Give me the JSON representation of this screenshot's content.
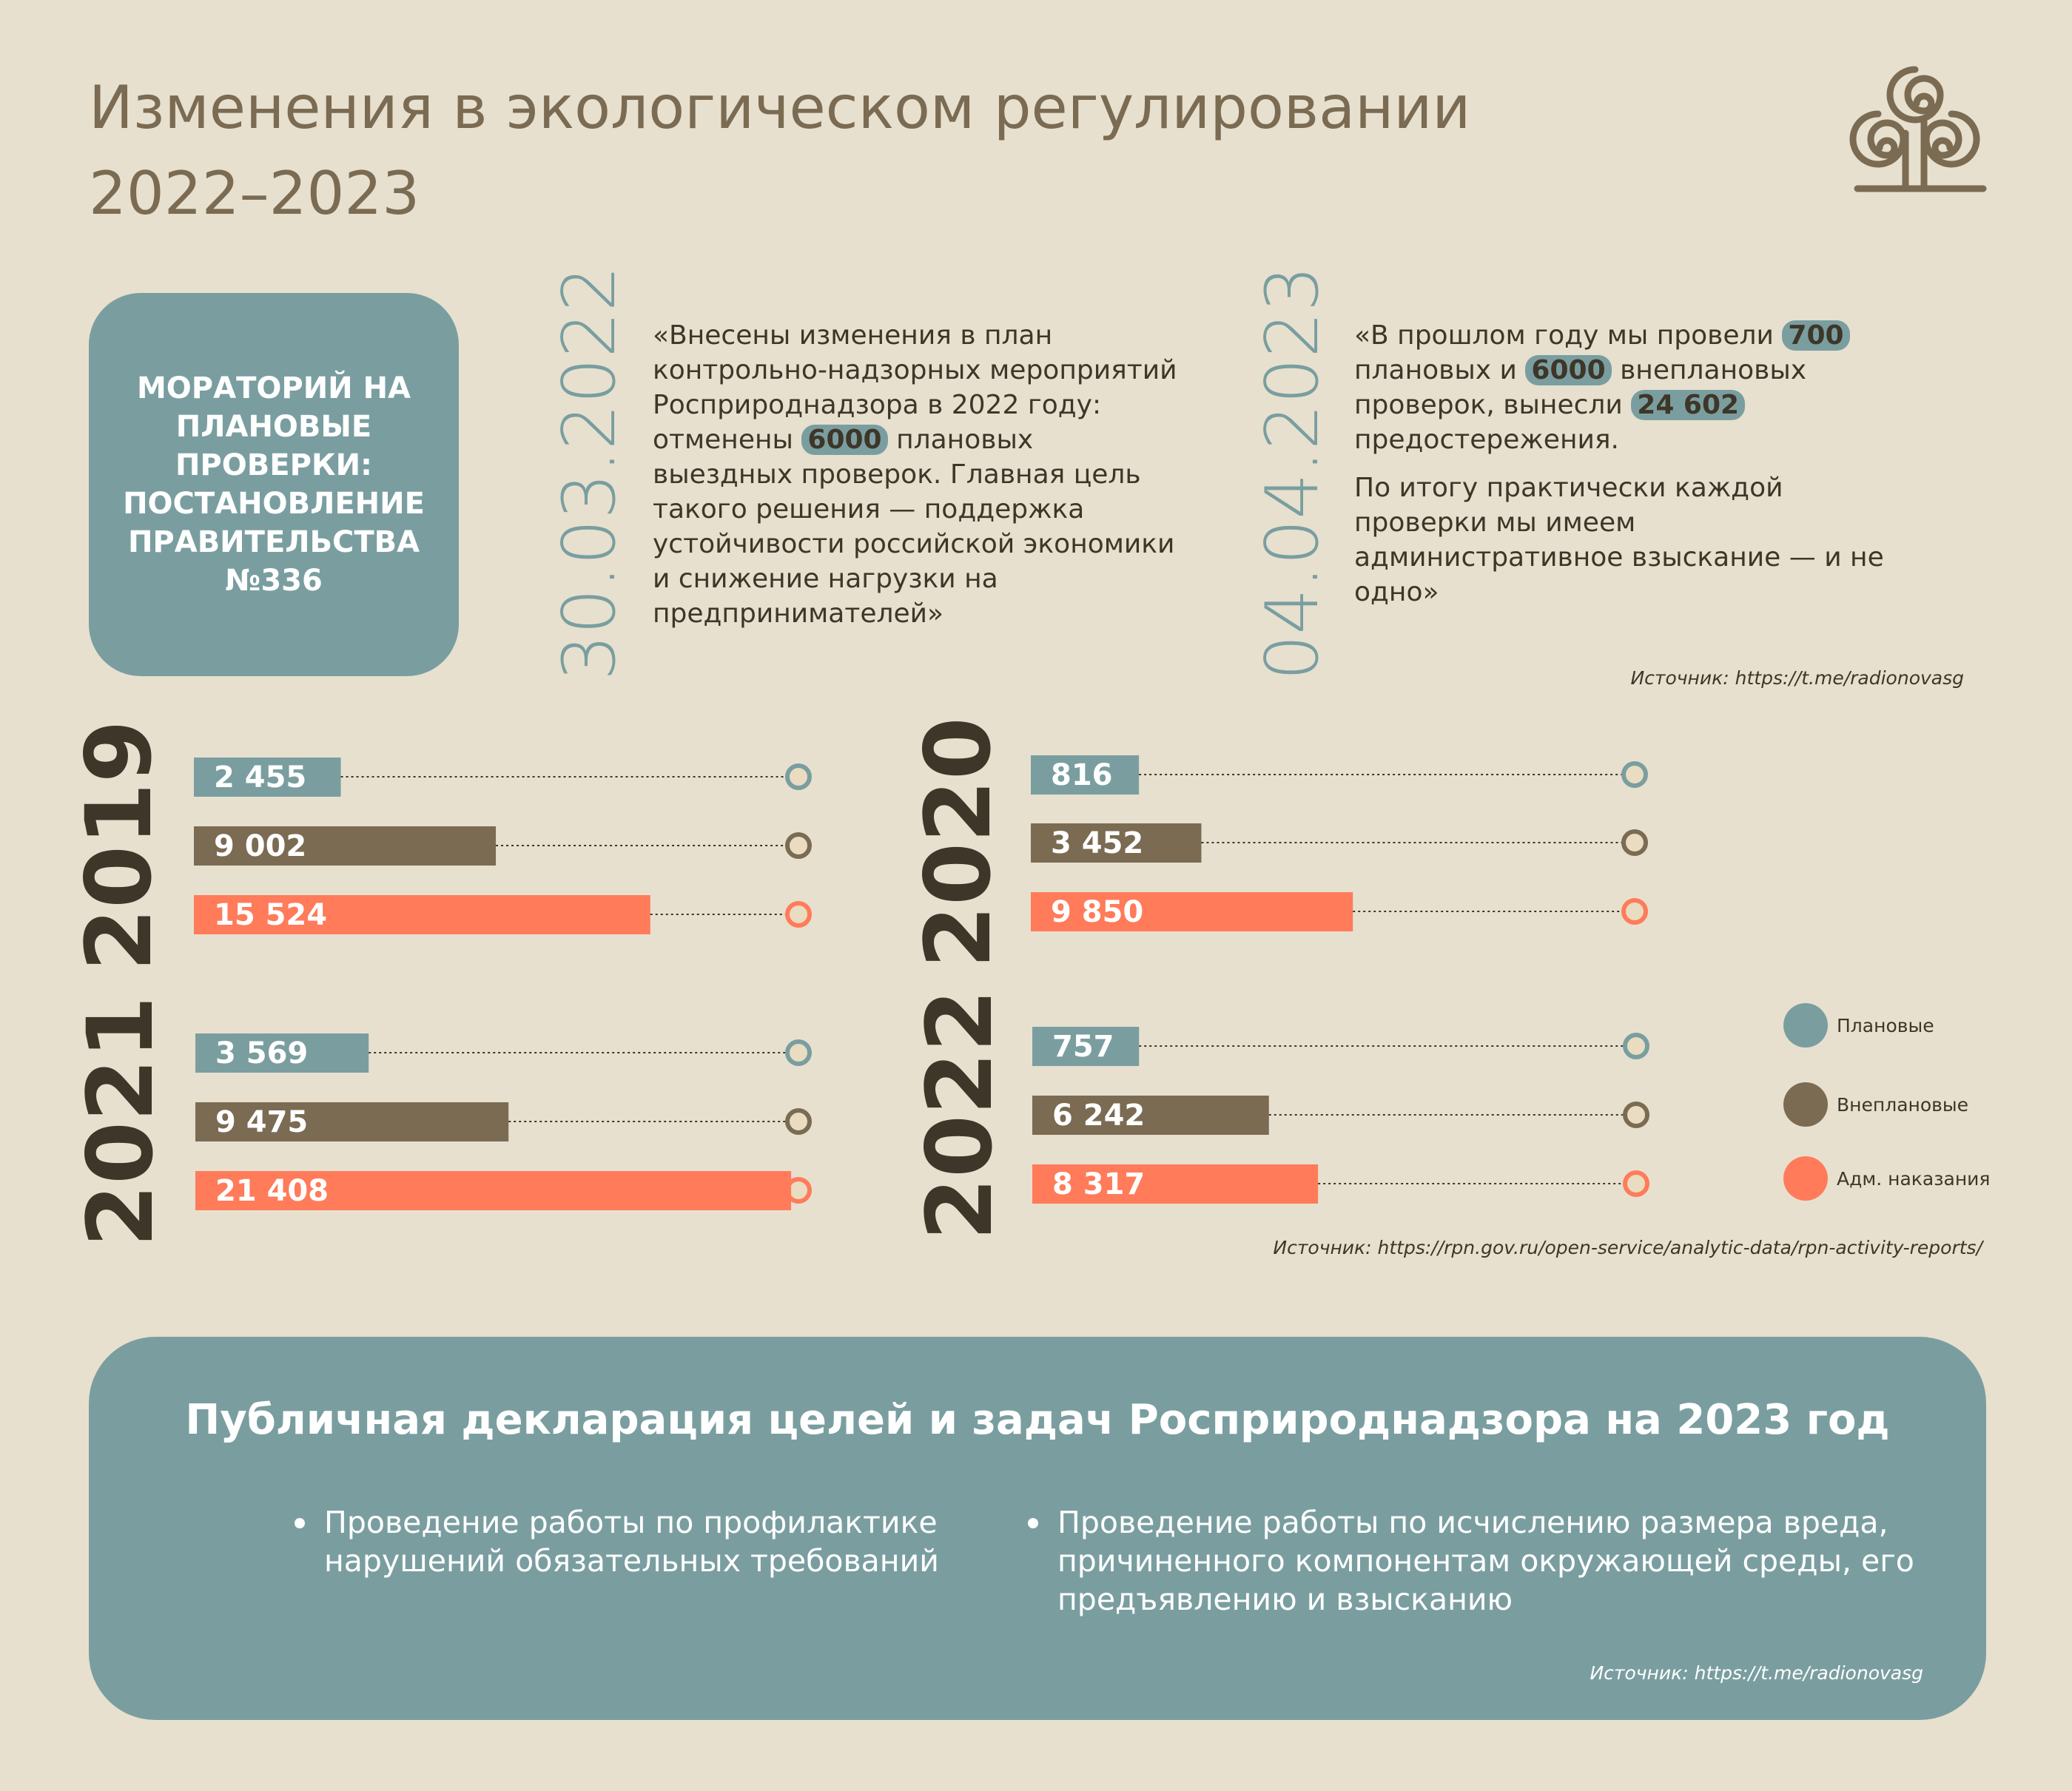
{
  "header": {
    "title": "Изменения в экологическом регулировании 2022–2023"
  },
  "moratorium": "МОРАТОРИЙ НА ПЛАНОВЫЕ ПРОВЕРКИ: ПОСТАНОВЛЕНИЕ ПРАВИТЕЛЬСТВА №336",
  "quotes": [
    {
      "date": "30.03.2022",
      "paragraphs": [
        {
          "parts": [
            {
              "text": "«Внесены изменения в план контрольно-надзорных мероприятий Росприроднадзора в 2022 году: отменены"
            },
            {
              "text": "6000",
              "highlight": true
            },
            {
              "text": "плановых выездных проверок. Главная цель такого решения — поддержка устойчивости российской экономики и снижение нагрузки на предпринимателей»"
            }
          ]
        }
      ]
    },
    {
      "date": "04.04.2023",
      "paragraphs": [
        {
          "parts": [
            {
              "text": "«В прошлом году мы провели"
            },
            {
              "text": "700",
              "highlight": true
            },
            {
              "text": "плановых и"
            },
            {
              "text": "6000",
              "highlight": true
            },
            {
              "text": "внеплановых проверок, вынесли"
            },
            {
              "text": "24 602",
              "highlight": true
            },
            {
              "text": "предостережения."
            }
          ]
        },
        {
          "parts": [
            {
              "text": "По итогу практически каждой проверки мы имеем административное взыскание — и не одно»"
            }
          ]
        }
      ]
    }
  ],
  "quote_source": "Источник: https://t.me/radionovasg",
  "chart_data": [
    {
      "type": "bar",
      "title": "2019",
      "values": [
        2455,
        9002,
        15524
      ],
      "value_labels": [
        "2 455",
        "9 002",
        "15 524"
      ],
      "colors": [
        "#7a9ea0",
        "#7a6b52",
        "#ff7b5a"
      ]
    },
    {
      "type": "bar",
      "title": "2020",
      "values": [
        816,
        3452,
        9850
      ],
      "value_labels": [
        "816",
        "3 452",
        "9 850"
      ],
      "colors": [
        "#7a9ea0",
        "#7a6b52",
        "#ff7b5a"
      ]
    },
    {
      "type": "bar",
      "title": "2021",
      "values": [
        3569,
        9475,
        21408
      ],
      "value_labels": [
        "3 569",
        "9 475",
        "21 408"
      ],
      "colors": [
        "#7a9ea0",
        "#7a6b52",
        "#ff7b5a"
      ]
    },
    {
      "type": "bar",
      "title": "2022",
      "values": [
        757,
        6242,
        8317
      ],
      "value_labels": [
        "757",
        "6 242",
        "8 317"
      ],
      "colors": [
        "#7a9ea0",
        "#7a6b52",
        "#ff7b5a"
      ]
    }
  ],
  "legend": [
    {
      "name": "Плановые",
      "color": "#7a9ea0"
    },
    {
      "name": "Внеплановые",
      "color": "#7a6b52"
    },
    {
      "name": "Адм. наказания",
      "color": "#ff7b5a"
    }
  ],
  "chart_source": "Источник: https://rpn.gov.ru/open-service/analytic-data/rpn-activity-reports/",
  "declaration": {
    "title": "Публичная декларация целей и задач Росприроднадзора на 2023 год",
    "items": [
      "Проведение работы по профилактике нарушений обязательных требований",
      "Проведение работы по исчислению размера вреда, причиненного компонентам окружающей среды, его предъявлению и взысканию"
    ],
    "source": "Источник: https://t.me/radionovasg"
  }
}
